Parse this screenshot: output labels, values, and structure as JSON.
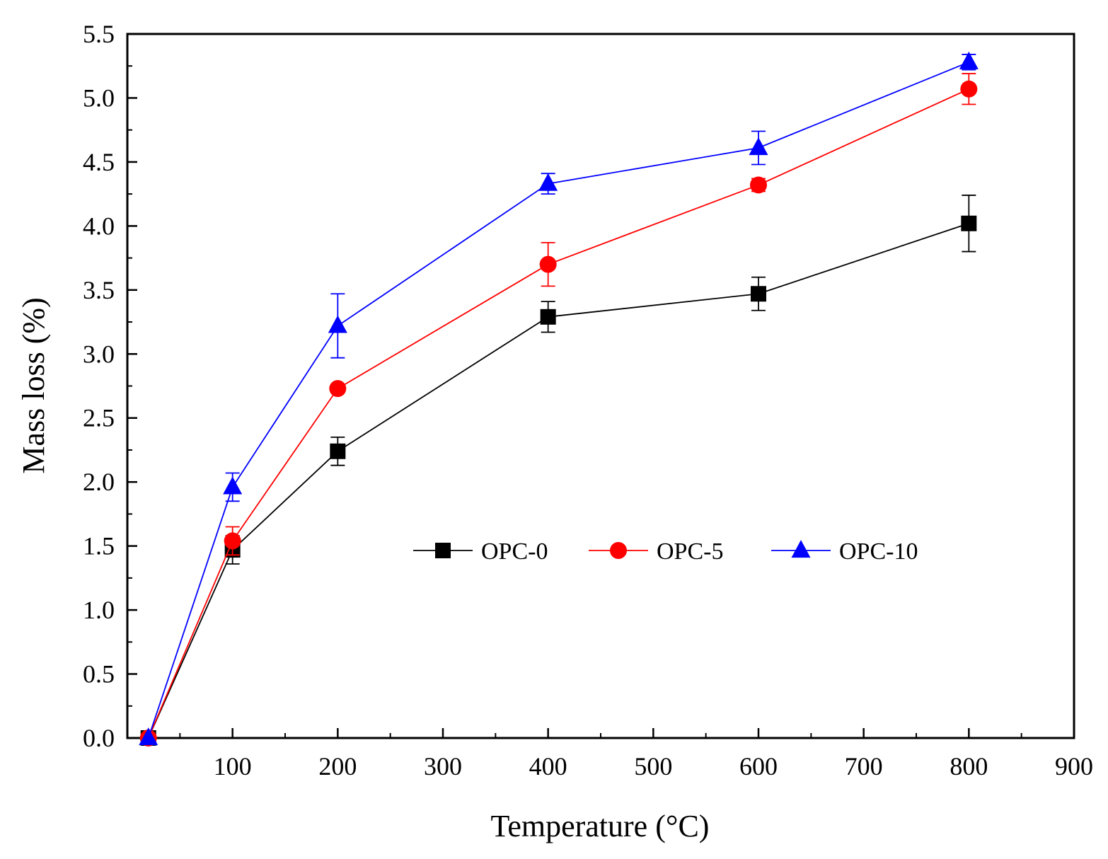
{
  "chart_data": {
    "type": "line",
    "title": "",
    "xlabel": "Temperature (°C)",
    "ylabel": "Mass loss (%)",
    "xlim": [
      0,
      900
    ],
    "ylim": [
      0,
      5.5
    ],
    "x_ticks": [
      100,
      200,
      300,
      400,
      500,
      600,
      700,
      800,
      900
    ],
    "y_ticks": [
      0.0,
      0.5,
      1.0,
      1.5,
      2.0,
      2.5,
      3.0,
      3.5,
      4.0,
      4.5,
      5.0,
      5.5
    ],
    "x_tick_labels": [
      "100",
      "200",
      "300",
      "400",
      "500",
      "600",
      "700",
      "800",
      "900"
    ],
    "y_tick_labels": [
      "0.0",
      "0.5",
      "1.0",
      "1.5",
      "2.0",
      "2.5",
      "3.0",
      "3.5",
      "4.0",
      "4.5",
      "5.0",
      "5.5"
    ],
    "grid": false,
    "legend_position": "center-right",
    "x": [
      20,
      100,
      200,
      400,
      600,
      800
    ],
    "series": [
      {
        "name": "OPC-0",
        "color": "#000000",
        "marker": "square",
        "values": [
          0.0,
          1.47,
          2.24,
          3.29,
          3.47,
          4.02
        ],
        "errors": [
          0.0,
          0.11,
          0.11,
          0.12,
          0.13,
          0.22
        ]
      },
      {
        "name": "OPC-5",
        "color": "#ff0000",
        "marker": "circle",
        "values": [
          0.0,
          1.54,
          2.73,
          3.7,
          4.32,
          5.07
        ],
        "errors": [
          0.0,
          0.11,
          0.0,
          0.17,
          0.05,
          0.12
        ]
      },
      {
        "name": "OPC-10",
        "color": "#0000ff",
        "marker": "triangle",
        "values": [
          0.0,
          1.96,
          3.22,
          4.33,
          4.61,
          5.28
        ],
        "errors": [
          0.0,
          0.11,
          0.25,
          0.08,
          0.13,
          0.06
        ]
      }
    ]
  }
}
